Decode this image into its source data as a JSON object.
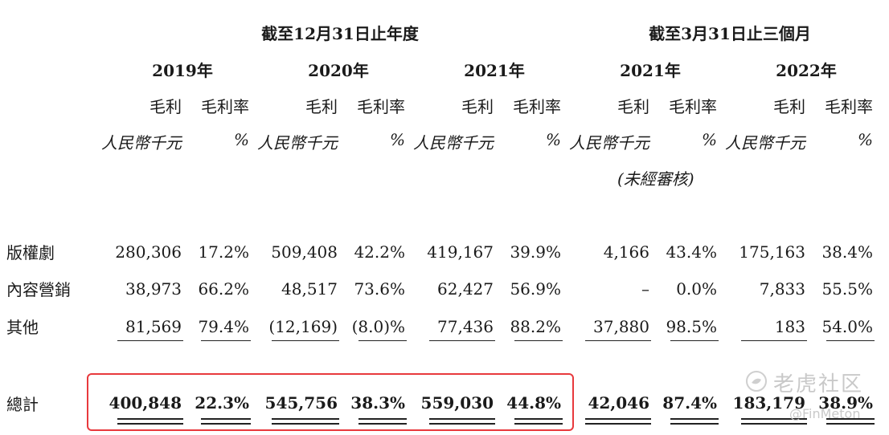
{
  "headers": {
    "fy_group": "截至12月31日止年度",
    "q_group": "截至3月31日止三個月"
  },
  "years": [
    "2019年",
    "2020年",
    "2021年",
    "2021年",
    "2022年"
  ],
  "sub_headers": {
    "gross_profit": "毛利",
    "margin": "毛利率"
  },
  "units": {
    "rmb": "人民幣千元",
    "pct": "%"
  },
  "unaudited_note": "(未經審核)",
  "rows": [
    {
      "label": "版權劇",
      "values": [
        "280,306",
        "17.2%",
        "509,408",
        "42.2%",
        "419,167",
        "39.9%",
        "4,166",
        "43.4%",
        "175,163",
        "38.4%"
      ]
    },
    {
      "label": "內容營銷",
      "values": [
        "38,973",
        "66.2%",
        "48,517",
        "73.6%",
        "62,427",
        "56.9%",
        "–",
        "0.0%",
        "7,833",
        "55.5%"
      ]
    },
    {
      "label": "其他",
      "values": [
        "81,569",
        "79.4%",
        "(12,169)",
        "(8.0)%",
        "77,436",
        "88.2%",
        "37,880",
        "98.5%",
        "183",
        "54.0%"
      ]
    }
  ],
  "total": {
    "label": "總計",
    "values": [
      "400,848",
      "22.3%",
      "545,756",
      "38.3%",
      "559,030",
      "44.8%",
      "42,046",
      "87.4%",
      "183,179",
      "38.9%"
    ]
  },
  "colors": {
    "highlight_border": "#e8393d",
    "text": "#1a1a1a",
    "watermark": "#c9c9c9"
  },
  "watermark": {
    "logo_icon": "tiger-community-logo-icon",
    "name": "老虎社区",
    "handle": "@FinMeton"
  }
}
